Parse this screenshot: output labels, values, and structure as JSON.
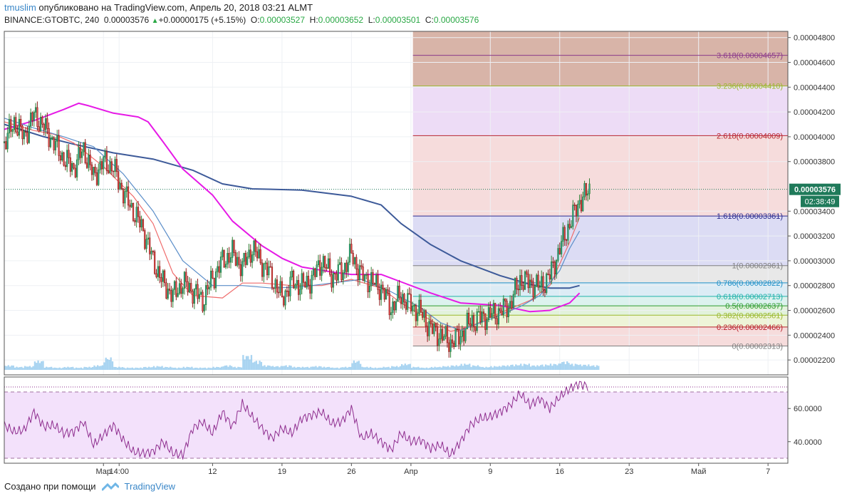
{
  "header": {
    "user": "tmuslim",
    "published": "опубликовано на TradingView.com, Апрель 20, 2018 03:21 ALMT",
    "symbol": "BINANCE:GTOBTC, 240",
    "last": "0.00003576",
    "change": "+0.00000175 (+5.15%)",
    "o_label": "O:",
    "o": "0.00003527",
    "h_label": "H:",
    "h": "0.00003652",
    "l_label": "L:",
    "l": "0.00003501",
    "c_label": "C:",
    "c": "0.00003576"
  },
  "footer": {
    "created_with": "Создано при помощи",
    "brand": "TradingView"
  },
  "colors": {
    "up": "#26a69a",
    "down": "#ef5350",
    "candle_body_up": "#2e7d32",
    "candle_body_down": "#8b1a1a",
    "ma_magenta": "#e619e6",
    "ma_navy": "#3d5a99",
    "ema_red": "#ef6b6b",
    "ema_blue": "#5b8ec9",
    "rsi_line": "#8e2d8e",
    "rsi_fill": "#f3e1fb",
    "volume": "#8cc5ec"
  },
  "chart_data": [
    {
      "type": "candlestick",
      "symbol": "BINANCE:GTOBTC",
      "timeframe": "240",
      "y_ticks": [
        "0.00004800",
        "0.00004600",
        "0.00004400",
        "0.00004200",
        "0.00004000",
        "0.00003800",
        "0.00003400",
        "0.00003200",
        "0.00003000",
        "0.00002800",
        "0.00002600",
        "0.00002400",
        "0.00002200"
      ],
      "y_tick_values": [
        4.8e-05,
        4.6e-05,
        4.4e-05,
        4.2e-05,
        4e-05,
        3.8e-05,
        3.4e-05,
        3.2e-05,
        3e-05,
        2.8e-05,
        2.6e-05,
        2.4e-05,
        2.2e-05
      ],
      "ylim": [
        2.08e-05,
        4.85e-05
      ],
      "x_ticks": [
        "Мар",
        "14:00",
        "12",
        "19",
        "26",
        "Апр",
        "9",
        "16",
        "23",
        "Май",
        "7"
      ],
      "x_tick_days": [
        0,
        1.58,
        11,
        18,
        25,
        31,
        39,
        46,
        53,
        60,
        67
      ],
      "x_range_days": [
        -10,
        69
      ],
      "last_price_label": "0.00003576",
      "countdown": "02:38:49",
      "last_price": 3.576e-05,
      "fibonacci": {
        "start_day": 31.2,
        "end_day": 68,
        "levels": [
          {
            "label": "3.618(0.00004657)",
            "value": 4.657e-05,
            "color": "#8b3a8b"
          },
          {
            "label": "3.236(0.00004410)",
            "value": 4.41e-05,
            "color": "#9ab82c"
          },
          {
            "label": "2.618(0.00004009)",
            "value": 4.009e-05,
            "color": "#b8202a"
          },
          {
            "label": "1.618(0.00003361)",
            "value": 3.361e-05,
            "color": "#2b2b8f"
          },
          {
            "label": "1(0.00002961)",
            "value": 2.961e-05,
            "color": "#808080"
          },
          {
            "label": "0.786(0.00002822)",
            "value": 2.822e-05,
            "color": "#1e90c8"
          },
          {
            "label": "0.618(0.00002713)",
            "value": 2.713e-05,
            "color": "#20b2aa"
          },
          {
            "label": "0.5(0.00002637)",
            "value": 2.637e-05,
            "color": "#2e9b2e"
          },
          {
            "label": "0.382(0.00002561)",
            "value": 2.561e-05,
            "color": "#9ab82c"
          },
          {
            "label": "0.236(0.00002466)",
            "value": 2.466e-05,
            "color": "#b8202a"
          },
          {
            "label": "0(0.00002313)",
            "value": 2.313e-05,
            "color": "#808080"
          }
        ],
        "zones": [
          {
            "from": 4.85e-05,
            "to": 4.41e-05,
            "color": "#d8b4a8"
          },
          {
            "from": 4.41e-05,
            "to": 4.009e-05,
            "color": "#eddcf6"
          },
          {
            "from": 4.009e-05,
            "to": 3.361e-05,
            "color": "#f6dcdc"
          },
          {
            "from": 3.361e-05,
            "to": 2.961e-05,
            "color": "#dcdcf4"
          },
          {
            "from": 2.961e-05,
            "to": 2.822e-05,
            "color": "#e8e8e8"
          },
          {
            "from": 2.822e-05,
            "to": 2.713e-05,
            "color": "#dcecf5"
          },
          {
            "from": 2.713e-05,
            "to": 2.637e-05,
            "color": "#dcf2ee"
          },
          {
            "from": 2.637e-05,
            "to": 2.561e-05,
            "color": "#e2f2dc"
          },
          {
            "from": 2.561e-05,
            "to": 2.466e-05,
            "color": "#eef4d8"
          },
          {
            "from": 2.466e-05,
            "to": 2.313e-05,
            "color": "#f6dcdc"
          }
        ]
      },
      "ma_magenta": [
        [
          -10,
          4.06e-05
        ],
        [
          -7,
          4.13e-05
        ],
        [
          -4,
          4.22e-05
        ],
        [
          -2.5,
          4.27e-05
        ],
        [
          -1.5,
          4.25e-05
        ],
        [
          1,
          4.19e-05
        ],
        [
          3.5,
          4.16e-05
        ],
        [
          4.5,
          4.12e-05
        ],
        [
          6,
          3.96e-05
        ],
        [
          8,
          3.74e-05
        ],
        [
          11,
          3.53e-05
        ],
        [
          13,
          3.32e-05
        ],
        [
          16,
          3.12e-05
        ],
        [
          18,
          3.02e-05
        ],
        [
          20,
          2.95e-05
        ],
        [
          23,
          2.91e-05
        ],
        [
          25,
          2.89e-05
        ],
        [
          28,
          2.89e-05
        ],
        [
          30,
          2.83e-05
        ],
        [
          33,
          2.74e-05
        ],
        [
          36,
          2.66e-05
        ],
        [
          40,
          2.64e-05
        ],
        [
          43,
          2.59e-05
        ],
        [
          45,
          2.6e-05
        ],
        [
          47,
          2.66e-05
        ],
        [
          48,
          2.74e-05
        ]
      ],
      "ma_navy": [
        [
          -10,
          4.1e-05
        ],
        [
          -6,
          4e-05
        ],
        [
          -3,
          3.94e-05
        ],
        [
          1,
          3.87e-05
        ],
        [
          5,
          3.82e-05
        ],
        [
          9,
          3.73e-05
        ],
        [
          12,
          3.62e-05
        ],
        [
          15,
          3.58e-05
        ],
        [
          20,
          3.57e-05
        ],
        [
          25,
          3.52e-05
        ],
        [
          28,
          3.45e-05
        ],
        [
          30,
          3.3e-05
        ],
        [
          33,
          3.13e-05
        ],
        [
          36,
          3e-05
        ],
        [
          40,
          2.88e-05
        ],
        [
          43,
          2.81e-05
        ],
        [
          45,
          2.78e-05
        ],
        [
          47,
          2.78e-05
        ],
        [
          48,
          2.8e-05
        ]
      ],
      "ema_red": [
        [
          -10,
          4.12e-05
        ],
        [
          -7,
          4.05e-05
        ],
        [
          -5,
          4.02e-05
        ],
        [
          -3,
          3.95e-05
        ],
        [
          0,
          3.76e-05
        ],
        [
          3,
          3.52e-05
        ],
        [
          5,
          3.3e-05
        ],
        [
          7,
          2.9e-05
        ],
        [
          9,
          2.72e-05
        ],
        [
          12,
          2.7e-05
        ],
        [
          14,
          2.82e-05
        ],
        [
          16,
          2.82e-05
        ],
        [
          19,
          2.8e-05
        ],
        [
          22,
          2.8e-05
        ],
        [
          25,
          2.85e-05
        ],
        [
          28,
          2.78e-05
        ],
        [
          30,
          2.66e-05
        ],
        [
          33,
          2.52e-05
        ],
        [
          35,
          2.43e-05
        ],
        [
          37,
          2.47e-05
        ],
        [
          40,
          2.58e-05
        ],
        [
          43,
          2.68e-05
        ],
        [
          45,
          2.8e-05
        ],
        [
          47,
          3.15e-05
        ],
        [
          48,
          3.35e-05
        ]
      ],
      "ema_blue": [
        [
          -10,
          4.15e-05
        ],
        [
          -7,
          4.07e-05
        ],
        [
          -4,
          4e-05
        ],
        [
          -1,
          3.92e-05
        ],
        [
          2,
          3.7e-05
        ],
        [
          5,
          3.4e-05
        ],
        [
          8,
          3e-05
        ],
        [
          11,
          2.8e-05
        ],
        [
          14,
          2.8e-05
        ],
        [
          17,
          2.78e-05
        ],
        [
          20,
          2.79e-05
        ],
        [
          23,
          2.82e-05
        ],
        [
          26,
          2.85e-05
        ],
        [
          29,
          2.75e-05
        ],
        [
          32,
          2.62e-05
        ],
        [
          34,
          2.5e-05
        ],
        [
          36,
          2.44e-05
        ],
        [
          39,
          2.53e-05
        ],
        [
          42,
          2.63e-05
        ],
        [
          44,
          2.72e-05
        ],
        [
          46,
          2.92e-05
        ],
        [
          47,
          3.1e-05
        ],
        [
          48,
          3.24e-05
        ]
      ],
      "price_path": [
        [
          -10,
          3.95e-05
        ],
        [
          -9,
          4.12e-05
        ],
        [
          -8,
          4e-05
        ],
        [
          -7,
          4.18e-05
        ],
        [
          -6,
          4.08e-05
        ],
        [
          -5,
          3.95e-05
        ],
        [
          -4,
          3.82e-05
        ],
        [
          -3,
          3.75e-05
        ],
        [
          -2,
          3.9e-05
        ],
        [
          -1,
          3.68e-05
        ],
        [
          0,
          3.8e-05
        ],
        [
          1,
          3.75e-05
        ],
        [
          2,
          3.55e-05
        ],
        [
          3,
          3.4e-05
        ],
        [
          4,
          3.25e-05
        ],
        [
          5,
          3e-05
        ],
        [
          6,
          2.82e-05
        ],
        [
          7,
          2.72e-05
        ],
        [
          8,
          2.82e-05
        ],
        [
          9,
          2.76e-05
        ],
        [
          10,
          2.68e-05
        ],
        [
          11,
          2.86e-05
        ],
        [
          12,
          3e-05
        ],
        [
          13,
          3.06e-05
        ],
        [
          14,
          2.95e-05
        ],
        [
          15,
          3.1e-05
        ],
        [
          16,
          2.98e-05
        ],
        [
          17,
          2.86e-05
        ],
        [
          18,
          2.7e-05
        ],
        [
          19,
          2.83e-05
        ],
        [
          20,
          2.8e-05
        ],
        [
          21,
          2.85e-05
        ],
        [
          22,
          3e-05
        ],
        [
          23,
          2.88e-05
        ],
        [
          24,
          2.91e-05
        ],
        [
          25,
          3.05e-05
        ],
        [
          26,
          2.88e-05
        ],
        [
          27,
          2.83e-05
        ],
        [
          28,
          2.78e-05
        ],
        [
          29,
          2.62e-05
        ],
        [
          30,
          2.72e-05
        ],
        [
          31,
          2.64e-05
        ],
        [
          32,
          2.58e-05
        ],
        [
          33,
          2.45e-05
        ],
        [
          34,
          2.4e-05
        ],
        [
          35,
          2.34e-05
        ],
        [
          36,
          2.4e-05
        ],
        [
          37,
          2.51e-05
        ],
        [
          38,
          2.54e-05
        ],
        [
          39,
          2.56e-05
        ],
        [
          40,
          2.59e-05
        ],
        [
          41,
          2.65e-05
        ],
        [
          42,
          2.85e-05
        ],
        [
          43,
          2.82e-05
        ],
        [
          44,
          2.79e-05
        ],
        [
          45,
          2.88e-05
        ],
        [
          46,
          3.1e-05
        ],
        [
          47,
          3.3e-05
        ],
        [
          48,
          3.48e-05
        ],
        [
          49,
          3.57e-05
        ]
      ],
      "rsi_ticks": [
        "60.0000",
        "40.0000"
      ],
      "rsi_tick_values": [
        60,
        40
      ],
      "rsi_range": [
        27,
        79
      ],
      "rsi_bands": [
        70,
        30
      ],
      "rsi_last_level": 73,
      "rsi": [
        [
          -10,
          50
        ],
        [
          -9,
          46
        ],
        [
          -8,
          47
        ],
        [
          -7,
          58
        ],
        [
          -6,
          49
        ],
        [
          -5,
          50
        ],
        [
          -4,
          45
        ],
        [
          -3,
          46
        ],
        [
          -2,
          52
        ],
        [
          -1,
          38
        ],
        [
          0,
          44
        ],
        [
          1,
          50
        ],
        [
          2,
          41
        ],
        [
          3,
          34
        ],
        [
          4,
          33
        ],
        [
          5,
          34
        ],
        [
          6,
          40
        ],
        [
          7,
          33
        ],
        [
          8,
          32
        ],
        [
          9,
          48
        ],
        [
          10,
          52
        ],
        [
          11,
          45
        ],
        [
          12,
          58
        ],
        [
          13,
          49
        ],
        [
          14,
          63
        ],
        [
          15,
          55
        ],
        [
          16,
          48
        ],
        [
          17,
          42
        ],
        [
          18,
          48
        ],
        [
          19,
          45
        ],
        [
          20,
          54
        ],
        [
          21,
          56
        ],
        [
          22,
          58
        ],
        [
          23,
          51
        ],
        [
          24,
          52
        ],
        [
          25,
          60
        ],
        [
          26,
          42
        ],
        [
          27,
          45
        ],
        [
          28,
          40
        ],
        [
          29,
          35
        ],
        [
          30,
          45
        ],
        [
          31,
          40
        ],
        [
          32,
          41
        ],
        [
          33,
          36
        ],
        [
          34,
          38
        ],
        [
          35,
          32
        ],
        [
          36,
          40
        ],
        [
          37,
          50
        ],
        [
          38,
          54
        ],
        [
          39,
          55
        ],
        [
          40,
          58
        ],
        [
          41,
          62
        ],
        [
          42,
          69
        ],
        [
          43,
          62
        ],
        [
          44,
          66
        ],
        [
          45,
          60
        ],
        [
          46,
          67
        ],
        [
          47,
          72
        ],
        [
          48,
          75
        ],
        [
          49,
          73
        ]
      ],
      "volume": [
        [
          -10,
          0.3
        ],
        [
          -9,
          0.2
        ],
        [
          -8,
          0.25
        ],
        [
          -7,
          0.6
        ],
        [
          -6,
          0.2
        ],
        [
          -5,
          0.15
        ],
        [
          -4,
          0.2
        ],
        [
          -3,
          0.15
        ],
        [
          -2,
          0.2
        ],
        [
          -1,
          0.3
        ],
        [
          0,
          0.8
        ],
        [
          1,
          0.2
        ],
        [
          2,
          0.15
        ],
        [
          3,
          0.15
        ],
        [
          4,
          0.2
        ],
        [
          5,
          0.25
        ],
        [
          6,
          0.2
        ],
        [
          7,
          0.15
        ],
        [
          8,
          0.2
        ],
        [
          9,
          0.15
        ],
        [
          10,
          0.15
        ],
        [
          11,
          0.2
        ],
        [
          12,
          0.3
        ],
        [
          13,
          0.2
        ],
        [
          14,
          0.95
        ],
        [
          15,
          0.6
        ],
        [
          16,
          0.3
        ],
        [
          17,
          0.25
        ],
        [
          18,
          0.3
        ],
        [
          19,
          0.2
        ],
        [
          20,
          0.2
        ],
        [
          21,
          0.25
        ],
        [
          22,
          0.2
        ],
        [
          23,
          0.15
        ],
        [
          24,
          0.2
        ],
        [
          25,
          0.6
        ],
        [
          26,
          0.2
        ],
        [
          27,
          0.15
        ],
        [
          28,
          0.2
        ],
        [
          29,
          0.25
        ],
        [
          30,
          0.4
        ],
        [
          31,
          0.2
        ],
        [
          32,
          0.15
        ],
        [
          33,
          0.2
        ],
        [
          34,
          0.25
        ],
        [
          35,
          0.3
        ],
        [
          36,
          0.4
        ],
        [
          37,
          0.3
        ],
        [
          38,
          0.2
        ],
        [
          39,
          0.25
        ],
        [
          40,
          0.3
        ],
        [
          41,
          0.35
        ],
        [
          42,
          0.4
        ],
        [
          43,
          0.3
        ],
        [
          44,
          0.35
        ],
        [
          45,
          0.4
        ],
        [
          46,
          0.55
        ],
        [
          47,
          0.4
        ],
        [
          48,
          0.35
        ],
        [
          49,
          0.3
        ]
      ]
    }
  ]
}
